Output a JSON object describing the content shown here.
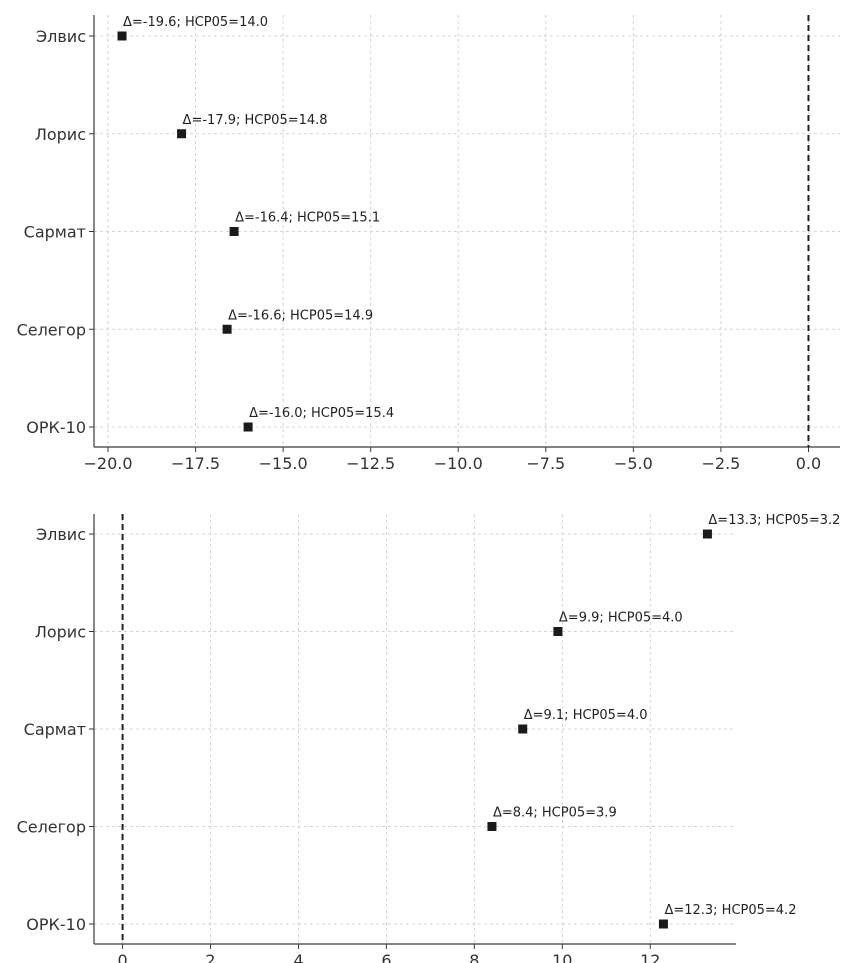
{
  "chart_data": [
    {
      "type": "scatter",
      "title": "",
      "xlabel": "",
      "ylabel": "",
      "categories": [
        "Элвис",
        "Лорис",
        "Сармат",
        "Селегор",
        "ОРК-10"
      ],
      "values": [
        -19.6,
        -17.9,
        -16.4,
        -16.6,
        -16.0
      ],
      "annotations": [
        "Δ=-19.6; НСР05=14.0",
        "Δ=-17.9; НСР05=14.8",
        "Δ=-16.4; НСР05=15.1",
        "Δ=-16.6; НСР05=14.9",
        "Δ=-16.0; НСР05=15.4"
      ],
      "xlim": [
        -20.4,
        0.9
      ],
      "xticks": [
        -20.0,
        -17.5,
        -15.0,
        -12.5,
        -10.0,
        -7.5,
        -5.0,
        -2.5,
        0.0
      ],
      "xtick_labels": [
        "−20.0",
        "−17.5",
        "−15.0",
        "−12.5",
        "−10.0",
        "−7.5",
        "−5.0",
        "−2.5",
        "0.0"
      ],
      "reference_line": 0,
      "grid": true
    },
    {
      "type": "scatter",
      "title": "",
      "xlabel": "",
      "ylabel": "",
      "categories": [
        "Элвис",
        "Лорис",
        "Сармат",
        "Селегор",
        "ОРК-10"
      ],
      "values": [
        13.3,
        9.9,
        9.1,
        8.4,
        12.3
      ],
      "annotations": [
        "Δ=13.3; НСР05=3.2",
        "Δ=9.9; НСР05=4.0",
        "Δ=9.1; НСР05=4.0",
        "Δ=8.4; НСР05=3.9",
        "Δ=12.3; НСР05=4.2"
      ],
      "xlim": [
        -0.65,
        13.95
      ],
      "xticks": [
        0,
        2,
        4,
        6,
        8,
        10,
        12
      ],
      "xtick_labels": [
        "0",
        "2",
        "4",
        "6",
        "8",
        "10",
        "12"
      ],
      "reference_line": 0,
      "grid": true
    }
  ]
}
